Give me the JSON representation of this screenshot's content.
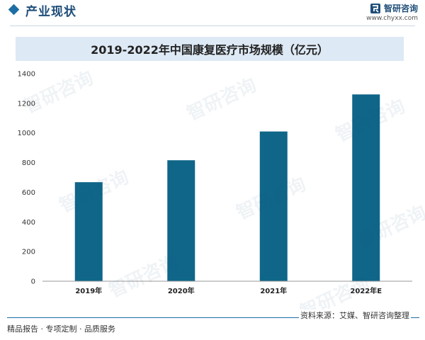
{
  "header": {
    "section_title": "产业现状",
    "brand_name": "智研咨询",
    "brand_url": "www.chyxx.com"
  },
  "watermark": {
    "text": "智研咨询"
  },
  "footer": {
    "slogan": "精品报告 · 专项定制 · 品质服务",
    "source": "资料来源：艾媒、智研咨询整理"
  },
  "colors": {
    "bar": "#0f6688",
    "accent": "#1c6ea4",
    "title_band": "#dde9f4"
  },
  "chart_data": {
    "type": "bar",
    "title": "2019-2022年中国康复医疗市场规模（亿元）",
    "categories": [
      "2019年",
      "2020年",
      "2021年",
      "2022年E"
    ],
    "values": [
      668,
      816,
      1010,
      1260
    ],
    "ylim": [
      0,
      1400
    ],
    "yticks": [
      0,
      200,
      400,
      600,
      800,
      1000,
      1200,
      1400
    ],
    "grid": false,
    "legend": "none"
  }
}
